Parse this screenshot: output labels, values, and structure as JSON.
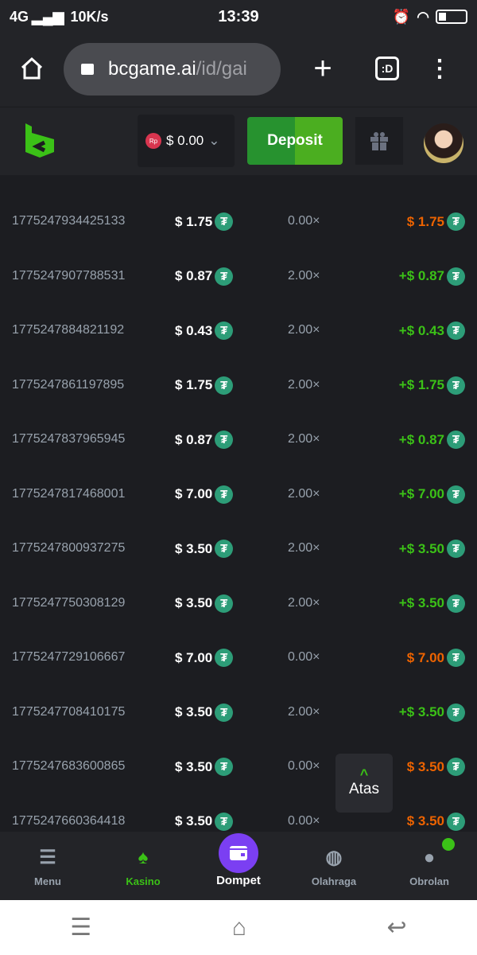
{
  "status_bar": {
    "network": "4G",
    "speed": "10K/s",
    "time": "13:39"
  },
  "browser": {
    "url_host": "bcgame.ai",
    "url_path": "/id/gai",
    "tabs_label": ":D"
  },
  "header": {
    "currency_badge": "Rp",
    "balance": "$ 0.00",
    "deposit_label": "Deposit"
  },
  "rows": [
    {
      "id": "1775247934425133",
      "bet": "$ 1.75",
      "multiplier": "0.00×",
      "payout": "$ 1.75",
      "win": false
    },
    {
      "id": "1775247907788531",
      "bet": "$ 0.87",
      "multiplier": "2.00×",
      "payout": "+$ 0.87",
      "win": true
    },
    {
      "id": "1775247884821192",
      "bet": "$ 0.43",
      "multiplier": "2.00×",
      "payout": "+$ 0.43",
      "win": true
    },
    {
      "id": "1775247861197895",
      "bet": "$ 1.75",
      "multiplier": "2.00×",
      "payout": "+$ 1.75",
      "win": true
    },
    {
      "id": "1775247837965945",
      "bet": "$ 0.87",
      "multiplier": "2.00×",
      "payout": "+$ 0.87",
      "win": true
    },
    {
      "id": "1775247817468001",
      "bet": "$ 7.00",
      "multiplier": "2.00×",
      "payout": "+$ 7.00",
      "win": true
    },
    {
      "id": "1775247800937275",
      "bet": "$ 3.50",
      "multiplier": "2.00×",
      "payout": "+$ 3.50",
      "win": true
    },
    {
      "id": "1775247750308129",
      "bet": "$ 3.50",
      "multiplier": "2.00×",
      "payout": "+$ 3.50",
      "win": true
    },
    {
      "id": "1775247729106667",
      "bet": "$ 7.00",
      "multiplier": "0.00×",
      "payout": "$ 7.00",
      "win": false
    },
    {
      "id": "1775247708410175",
      "bet": "$ 3.50",
      "multiplier": "2.00×",
      "payout": "+$ 3.50",
      "win": true
    },
    {
      "id": "1775247683600865",
      "bet": "$ 3.50",
      "multiplier": "0.00×",
      "payout": "$ 3.50",
      "win": false
    },
    {
      "id": "1775247660364418",
      "bet": "$ 3.50",
      "multiplier": "0.00×",
      "payout": "$ 3.50",
      "win": false
    }
  ],
  "colors": {
    "win": "#3bc117",
    "loss": "#ed6300",
    "accent": "#3bc117",
    "wallet": "#7b3ff2",
    "usdt": "#2d9d78"
  },
  "back_to_top": "Atas",
  "bottom_nav": [
    {
      "label": "Menu",
      "icon": "menu-icon"
    },
    {
      "label": "Kasino",
      "icon": "casino-cards-icon",
      "active": true
    },
    {
      "label": "Dompet",
      "icon": "wallet-icon"
    },
    {
      "label": "Olahraga",
      "icon": "basketball-icon"
    },
    {
      "label": "Obrolan",
      "icon": "chat-icon"
    }
  ]
}
